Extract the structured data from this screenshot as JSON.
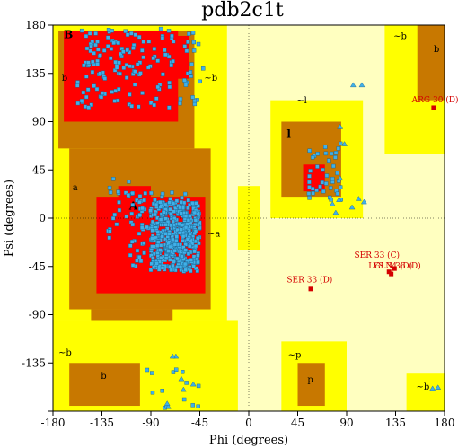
{
  "chart_data": {
    "type": "scatter",
    "title": "pdb2c1t",
    "xlabel": "Phi (degrees)",
    "ylabel": "Psi (degrees)",
    "xlim": [
      -180,
      180
    ],
    "ylim": [
      -180,
      180
    ],
    "xticks": [
      -180,
      -135,
      -90,
      -45,
      0,
      45,
      90,
      135,
      180
    ],
    "yticks": [
      -180,
      -135,
      -90,
      -45,
      0,
      45,
      90,
      135,
      180
    ],
    "tick_labels_x": [
      "-180",
      "-135",
      "-90",
      "-45",
      "0",
      "45",
      "90",
      "135",
      "180"
    ],
    "tick_labels_y": [
      "180",
      "135",
      "90",
      "45",
      "0",
      "-45",
      "-90",
      "-135",
      ""
    ],
    "colors": {
      "core": "#ff0000",
      "allowed": "#c87800",
      "generous": "#ffff00",
      "disallowed": "#ffffc0",
      "residue": "#40b0e8",
      "glycine": "#40b0e8",
      "outlier": "#d40000"
    },
    "region_labels": [
      {
        "text": "B",
        "phi": -170,
        "psi": 168,
        "bold": true
      },
      {
        "text": "b",
        "phi": -172,
        "psi": 128,
        "bold": false
      },
      {
        "text": "A",
        "phi": -110,
        "psi": 8,
        "bold": true
      },
      {
        "text": "a",
        "phi": -162,
        "psi": 26,
        "bold": false
      },
      {
        "text": "~b",
        "phi": -41,
        "psi": 128,
        "bold": false
      },
      {
        "text": "~a",
        "phi": -38,
        "psi": -17,
        "bold": false
      },
      {
        "text": "~l",
        "phi": 44,
        "psi": 107,
        "bold": false
      },
      {
        "text": "l",
        "phi": 35,
        "psi": 75,
        "bold": true
      },
      {
        "text": "~b",
        "phi": 133,
        "psi": 167,
        "bold": false
      },
      {
        "text": "b",
        "phi": 170,
        "psi": 155,
        "bold": false
      },
      {
        "text": "~b",
        "phi": -175,
        "psi": -128,
        "bold": false
      },
      {
        "text": "b",
        "phi": -136,
        "psi": -150,
        "bold": false
      },
      {
        "text": "~p",
        "phi": 36,
        "psi": -130,
        "bold": false
      },
      {
        "text": "p",
        "phi": 54,
        "psi": -153,
        "bold": false
      },
      {
        "text": "~b",
        "phi": 154,
        "psi": -160,
        "bold": false
      }
    ],
    "labeled_outliers": [
      {
        "text": "ARG 30 (D)",
        "phi": 170,
        "psi": 103,
        "tx": 150,
        "ty": 108
      },
      {
        "text": "SER 33 (C)",
        "phi": 129,
        "psi": -50,
        "tx": 97,
        "ty": -37
      },
      {
        "text": "LYS 34 (D)",
        "phi": 134,
        "psi": -47,
        "tx": 110,
        "ty": -47
      },
      {
        "text": "GLN 36 (D)",
        "phi": 131,
        "psi": -52,
        "tx": 115,
        "ty": -47
      },
      {
        "text": "SER 33 (D)",
        "phi": 57,
        "psi": -66,
        "tx": 35,
        "ty": -60
      }
    ],
    "glycines": [
      [
        96,
        124
      ],
      [
        104,
        124
      ],
      [
        84,
        85
      ],
      [
        88,
        69
      ],
      [
        101,
        18
      ],
      [
        106,
        15
      ],
      [
        95,
        10
      ],
      [
        83,
        17
      ],
      [
        77,
        13
      ],
      [
        84,
        37
      ],
      [
        80,
        5
      ],
      [
        -67,
        -129
      ],
      [
        -70,
        -129
      ],
      [
        -51,
        -155
      ],
      [
        -60,
        -160
      ],
      [
        -74,
        -176
      ],
      [
        -75,
        -173
      ],
      [
        -62,
        -150
      ],
      [
        169,
        -159
      ],
      [
        174,
        -158
      ]
    ],
    "residue_clusters": [
      {
        "phi_range": [
          -160,
          -40
        ],
        "psi_range": [
          102,
          177
        ],
        "n": 130,
        "seed": 11
      },
      {
        "phi_range": [
          -150,
          -100
        ],
        "psi_range": [
          130,
          175
        ],
        "n": 35,
        "seed": 12
      },
      {
        "phi_range": [
          -90,
          -45
        ],
        "psi_range": [
          -50,
          15
        ],
        "n": 420,
        "seed": 13
      },
      {
        "phi_range": [
          -110,
          -55
        ],
        "psi_range": [
          -45,
          25
        ],
        "n": 120,
        "seed": 14
      },
      {
        "phi_range": [
          -130,
          -110
        ],
        "psi_range": [
          -20,
          45
        ],
        "n": 20,
        "seed": 15
      },
      {
        "phi_range": [
          55,
          85
        ],
        "psi_range": [
          10,
          70
        ],
        "n": 40,
        "seed": 16
      },
      {
        "phi_range": [
          -95,
          -45
        ],
        "psi_range": [
          -180,
          -140
        ],
        "n": 14,
        "seed": 17
      }
    ]
  }
}
